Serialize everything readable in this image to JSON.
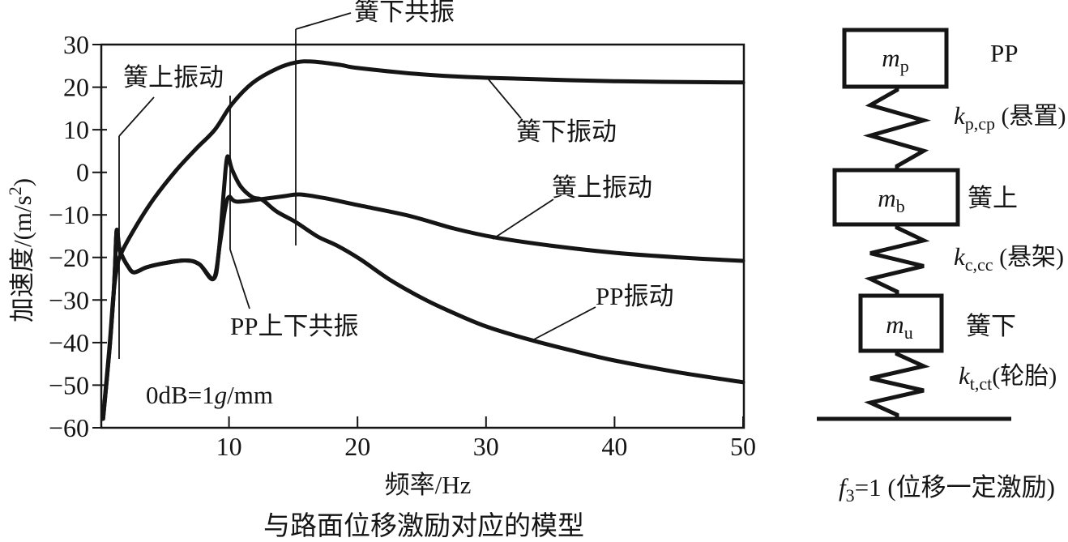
{
  "figure": {
    "caption": "与路面位移激励对应的模型"
  },
  "chart": {
    "y_axis": {
      "label_pre": "加速度/(m/s",
      "label_sup": "2",
      "label_post": ")",
      "ticks": [
        "30",
        "20",
        "10",
        "0",
        "−10",
        "−20",
        "−30",
        "−40",
        "−50",
        "−60"
      ]
    },
    "x_axis": {
      "label": "频率/Hz",
      "ticks": [
        "10",
        "20",
        "30",
        "40",
        "50"
      ]
    },
    "note": {
      "pre": "0dB=1",
      "italic": "g",
      "post": "/mm"
    },
    "annotations": {
      "sprung_resonance_label": "簧上振动",
      "unsprung_resonance_label": "簧下共振",
      "pp_resonance_label": "PP上下共振",
      "unsprung_curve_label": "簧下振动",
      "sprung_curve_label": "簧上振动",
      "pp_curve_label": "PP振动"
    }
  },
  "chart_data": {
    "type": "line",
    "title": "与路面位移激励对应的模型",
    "xlabel": "频率/Hz",
    "ylabel": "加速度/(m/s²)",
    "xlim": [
      0,
      50
    ],
    "ylim": [
      -60,
      30
    ],
    "grid": false,
    "note": "0dB=1g/mm",
    "resonance_markers": [
      {
        "label": "簧上振动",
        "freq": 1.4
      },
      {
        "label": "PP上下共振",
        "freq": 10
      },
      {
        "label": "簧下共振",
        "freq": 15
      }
    ],
    "series": [
      {
        "name": "簧下振动",
        "points": [
          [
            0.2,
            -57.5
          ],
          [
            0.7,
            -41
          ],
          [
            1.0,
            -29
          ],
          [
            1.25,
            -23
          ],
          [
            1.6,
            -19.1
          ],
          [
            2.9,
            -12
          ],
          [
            4.2,
            -6
          ],
          [
            5.9,
            0.5
          ],
          [
            7.5,
            5.7
          ],
          [
            8.9,
            10
          ],
          [
            10.2,
            15.9
          ],
          [
            11.8,
            20.9
          ],
          [
            13.7,
            24.3
          ],
          [
            15.2,
            25.8
          ],
          [
            16.5,
            26.0
          ],
          [
            18.7,
            25.2
          ],
          [
            20,
            24.5
          ],
          [
            25,
            23.0
          ],
          [
            30,
            22.2
          ],
          [
            40,
            21.4
          ],
          [
            50,
            21.1
          ]
        ]
      },
      {
        "name": "簧上振动",
        "points": [
          [
            0.2,
            -57.9
          ],
          [
            0.7,
            -41.7
          ],
          [
            1.0,
            -29.5
          ],
          [
            1.13,
            -22.3
          ],
          [
            1.26,
            -13.6
          ],
          [
            1.45,
            -17.6
          ],
          [
            1.63,
            -19.3
          ],
          [
            2.1,
            -21.9
          ],
          [
            2.6,
            -23.5
          ],
          [
            3.6,
            -22.3
          ],
          [
            4.9,
            -21.4
          ],
          [
            6.6,
            -20.7
          ],
          [
            7.7,
            -21.6
          ],
          [
            8.8,
            -25.0
          ],
          [
            9.3,
            -16.6
          ],
          [
            9.7,
            -8.6
          ],
          [
            10.0,
            -5.8
          ],
          [
            10.6,
            -6.9
          ],
          [
            12.5,
            -6.3
          ],
          [
            14.3,
            -5.6
          ],
          [
            15.5,
            -5.2
          ],
          [
            17.5,
            -6.1
          ],
          [
            20,
            -7.7
          ],
          [
            24,
            -10.2
          ],
          [
            27.5,
            -13.2
          ],
          [
            30.7,
            -15.3
          ],
          [
            35,
            -17.2
          ],
          [
            40,
            -18.9
          ],
          [
            45,
            -20.0
          ],
          [
            50,
            -20.8
          ]
        ]
      },
      {
        "name": "PP振动",
        "points": [
          [
            0.2,
            -57.9
          ],
          [
            0.7,
            -41.7
          ],
          [
            1.0,
            -29.5
          ],
          [
            1.13,
            -22.3
          ],
          [
            1.26,
            -13.6
          ],
          [
            1.45,
            -17.6
          ],
          [
            1.63,
            -19.3
          ],
          [
            2.1,
            -21.9
          ],
          [
            2.6,
            -23.5
          ],
          [
            3.6,
            -22.3
          ],
          [
            4.9,
            -21.4
          ],
          [
            6.6,
            -20.7
          ],
          [
            7.7,
            -21.6
          ],
          [
            8.8,
            -25.0
          ],
          [
            9.2,
            -18.9
          ],
          [
            9.6,
            -4.2
          ],
          [
            9.87,
            3.6
          ],
          [
            10.25,
            0.5
          ],
          [
            10.9,
            -3.3
          ],
          [
            11.8,
            -5.8
          ],
          [
            12.6,
            -6.5
          ],
          [
            13.7,
            -9.2
          ],
          [
            15.2,
            -11.7
          ],
          [
            16.9,
            -15.1
          ],
          [
            18.4,
            -17.2
          ],
          [
            20.2,
            -20.4
          ],
          [
            22.5,
            -25.2
          ],
          [
            25,
            -29.5
          ],
          [
            27,
            -32.4
          ],
          [
            30,
            -36.2
          ],
          [
            33.5,
            -39.4
          ],
          [
            37,
            -42.1
          ],
          [
            40,
            -44.2
          ],
          [
            45,
            -47.0
          ],
          [
            50,
            -49.3
          ]
        ]
      }
    ]
  },
  "diagram": {
    "mass_top": {
      "sym": "m",
      "sub": "p",
      "side": "PP"
    },
    "spring_top": {
      "sym": "k",
      "sub": "p,cp",
      "rest": " (悬置)"
    },
    "mass_mid": {
      "sym": "m",
      "sub": "b",
      "side": "簧上"
    },
    "spring_mid": {
      "sym": "k",
      "sub": "c,cc",
      "rest": " (悬架)"
    },
    "mass_bot": {
      "sym": "m",
      "sub": "u",
      "side": "簧下"
    },
    "spring_bot": {
      "sym": "k",
      "sub": "t,ct",
      "rest": "(轮胎)"
    },
    "excitation": {
      "sym": "f",
      "sub": "3",
      "rest": "=1 (位移一定激励)"
    }
  }
}
